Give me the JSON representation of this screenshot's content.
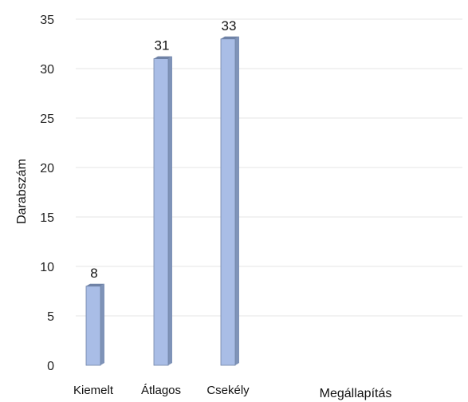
{
  "chart_data": {
    "type": "bar",
    "categories": [
      "Kiemelt",
      "Átlagos",
      "Csekély"
    ],
    "values": [
      8,
      31,
      33
    ],
    "data_labels": [
      "8",
      "31",
      "33"
    ],
    "title": "",
    "xlabel": "Megállapítás",
    "ylabel": "Darabszám",
    "ylim": [
      0,
      35
    ],
    "yticks": [
      "0",
      "5",
      "10",
      "15",
      "20",
      "25",
      "30",
      "35"
    ],
    "grid": true,
    "legend": "none",
    "colors": {
      "bar_front": "#a9bde6",
      "bar_side": "#7f93b8",
      "bar_edge": "#6f82a6",
      "grid": "#e6e6e6"
    }
  }
}
